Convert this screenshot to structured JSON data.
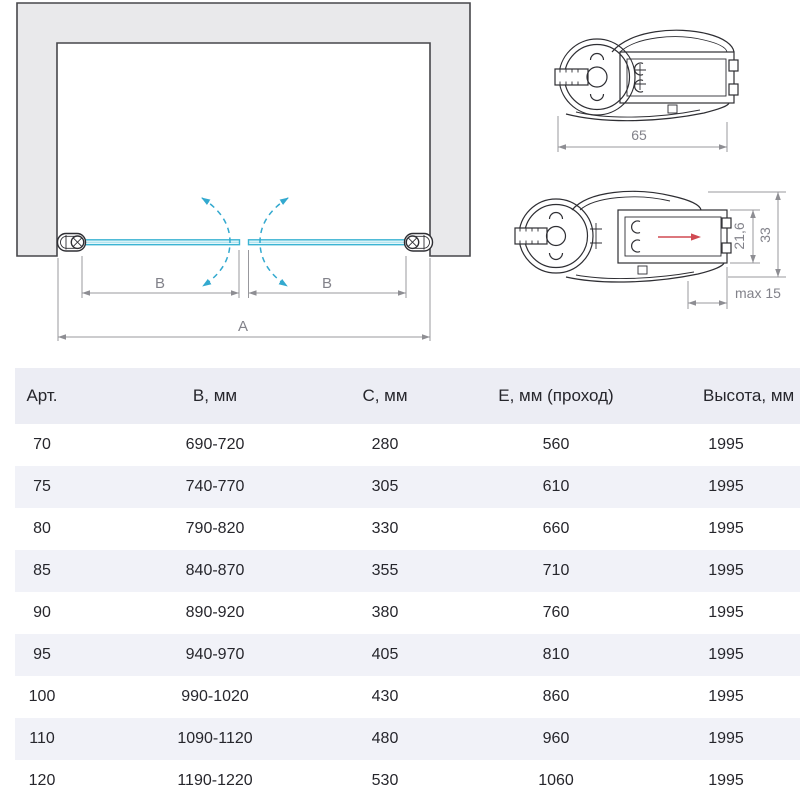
{
  "diagram": {
    "plan": {
      "dim_a": "A",
      "dim_b_left": "B",
      "dim_b_right": "B"
    },
    "profile_top": {
      "width": "65"
    },
    "profile_side": {
      "depth": "21,6",
      "height": "33",
      "max": "max 15"
    },
    "colors": {
      "glass_cyan": "#3cb4d3",
      "swing_arc_cyan": "#33a9cf",
      "dimension_gray": "#8e8e93",
      "drawing_line": "#2e2e33",
      "wall_fill": "#e9e9eb",
      "accent_red": "#d04a52",
      "table_header_bg": "#ecedf4",
      "table_stripe_bg": "#f1f2f8"
    }
  },
  "table": {
    "headers": [
      "Арт.",
      "B, мм",
      "C, мм",
      "E, мм (проход)",
      "Высота, мм"
    ],
    "rows": [
      [
        "70",
        "690-720",
        "280",
        "560",
        "1995"
      ],
      [
        "75",
        "740-770",
        "305",
        "610",
        "1995"
      ],
      [
        "80",
        "790-820",
        "330",
        "660",
        "1995"
      ],
      [
        "85",
        "840-870",
        "355",
        "710",
        "1995"
      ],
      [
        "90",
        "890-920",
        "380",
        "760",
        "1995"
      ],
      [
        "95",
        "940-970",
        "405",
        "810",
        "1995"
      ],
      [
        "100",
        "990-1020",
        "430",
        "860",
        "1995"
      ],
      [
        "110",
        "1090-1120",
        "480",
        "960",
        "1995"
      ],
      [
        "120",
        "1190-1220",
        "530",
        "1060",
        "1995"
      ]
    ]
  }
}
